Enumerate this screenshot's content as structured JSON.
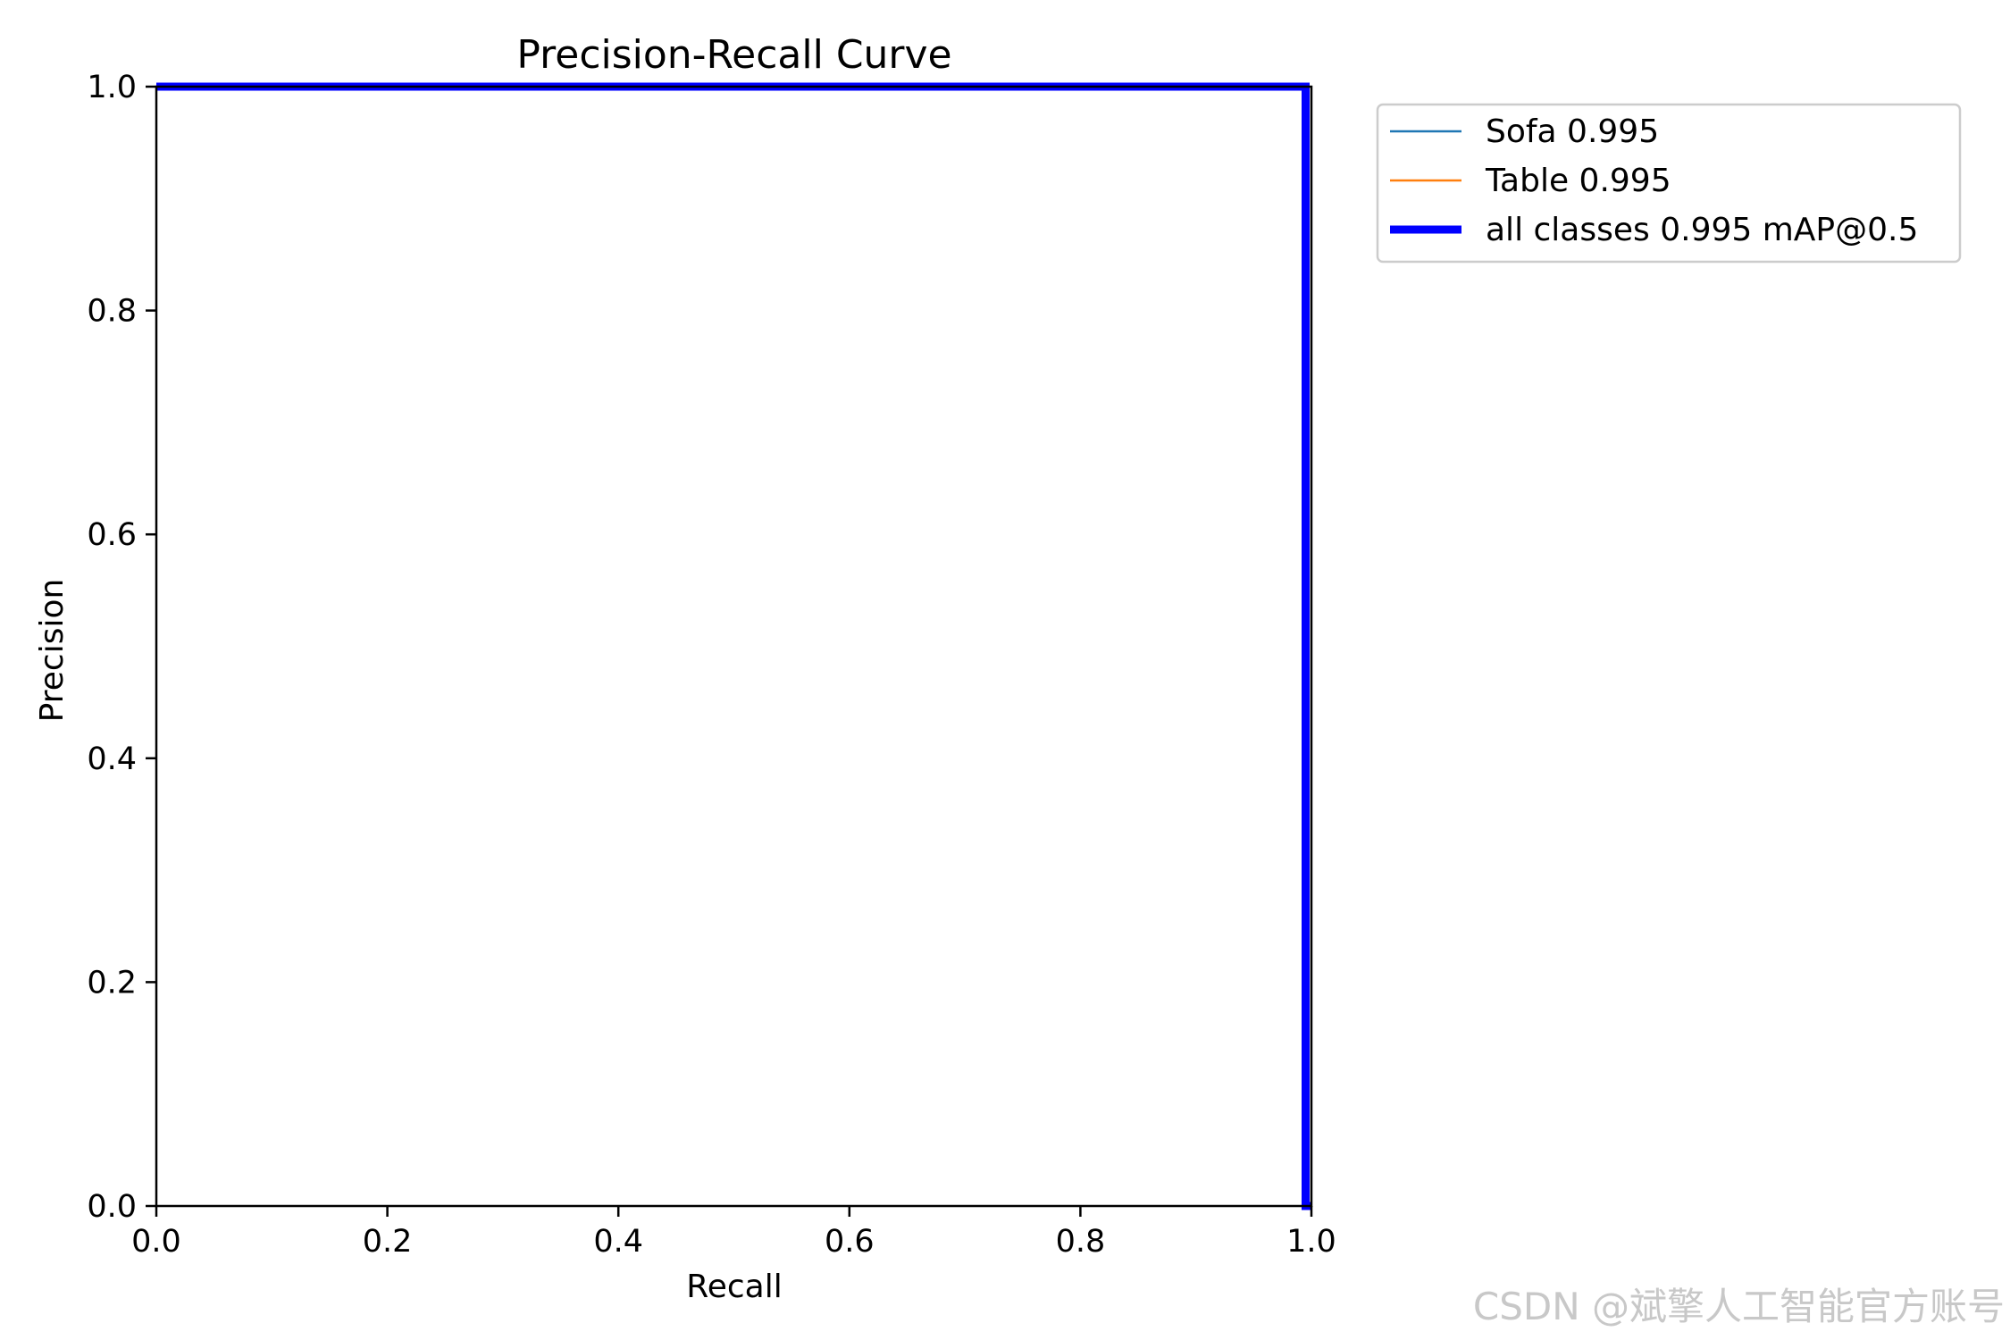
{
  "watermark": "CSDN @斌擎人工智能官方账号",
  "chart_data": {
    "type": "line",
    "title": "Precision-Recall Curve",
    "xlabel": "Recall",
    "ylabel": "Precision",
    "xlim": [
      0,
      1
    ],
    "ylim": [
      0,
      1
    ],
    "xticks": [
      "0.0",
      "0.2",
      "0.4",
      "0.6",
      "0.8",
      "1.0"
    ],
    "yticks": [
      "0.0",
      "0.2",
      "0.4",
      "0.6",
      "0.8",
      "1.0"
    ],
    "grid": false,
    "legend_placement": "outside upper right",
    "series": [
      {
        "name": "Sofa 0.995",
        "color": "#1f77b4",
        "width": "thin",
        "x": [
          0,
          0.995,
          0.995,
          1.0
        ],
        "y": [
          1.0,
          1.0,
          0.0,
          0.0
        ]
      },
      {
        "name": "Table 0.995",
        "color": "#ff7f0e",
        "width": "thin",
        "x": [
          0,
          0.995,
          0.995,
          1.0
        ],
        "y": [
          1.0,
          1.0,
          0.0,
          0.0
        ]
      },
      {
        "name": "all classes 0.995 mAP@0.5",
        "color": "#0000ff",
        "width": "thick",
        "x": [
          0,
          0.995,
          0.995,
          1.0
        ],
        "y": [
          1.0,
          1.0,
          0.0,
          0.0
        ]
      }
    ]
  }
}
